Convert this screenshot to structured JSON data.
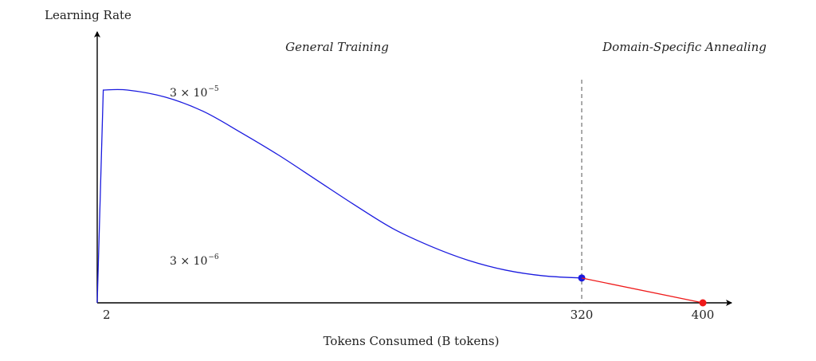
{
  "chart_data": {
    "type": "line",
    "title": "",
    "xlabel": "Tokens Consumed (B tokens)",
    "ylabel": "Learning Rate",
    "x_ticks": [
      {
        "value": 2,
        "label": "2"
      },
      {
        "value": 320,
        "label": "320"
      },
      {
        "value": 400,
        "label": "400"
      }
    ],
    "xlim": [
      0,
      420
    ],
    "ylim": [
      0,
      3.5e-05
    ],
    "regions": [
      {
        "label": "General Training",
        "x_range": [
          2,
          320
        ]
      },
      {
        "label": "Domain-Specific Annealing",
        "x_range": [
          320,
          400
        ]
      }
    ],
    "divider_x": 320,
    "annotations": [
      {
        "base": "3 × 10",
        "exponent": "−5",
        "value": 3e-05
      },
      {
        "base": "3 × 10",
        "exponent": "−6",
        "value": 3e-06
      }
    ],
    "series": [
      {
        "color": "#1a1adf",
        "x": [
          0,
          4,
          20,
          45,
          70,
          95,
          120,
          145,
          170,
          195,
          220,
          245,
          270,
          295,
          320
        ],
        "y": [
          0,
          3e-05,
          3e-05,
          2.9e-05,
          2.7e-05,
          2.4e-05,
          2.08e-05,
          1.73e-05,
          1.38e-05,
          1.05e-05,
          8e-06,
          6e-06,
          4.6e-06,
          3.8e-06,
          3.5e-06
        ],
        "endpoint_marker": true
      },
      {
        "color": "#ef1a1a",
        "x": [
          320,
          400
        ],
        "y": [
          3.5e-06,
          0
        ],
        "endpoint_marker": true
      }
    ]
  }
}
